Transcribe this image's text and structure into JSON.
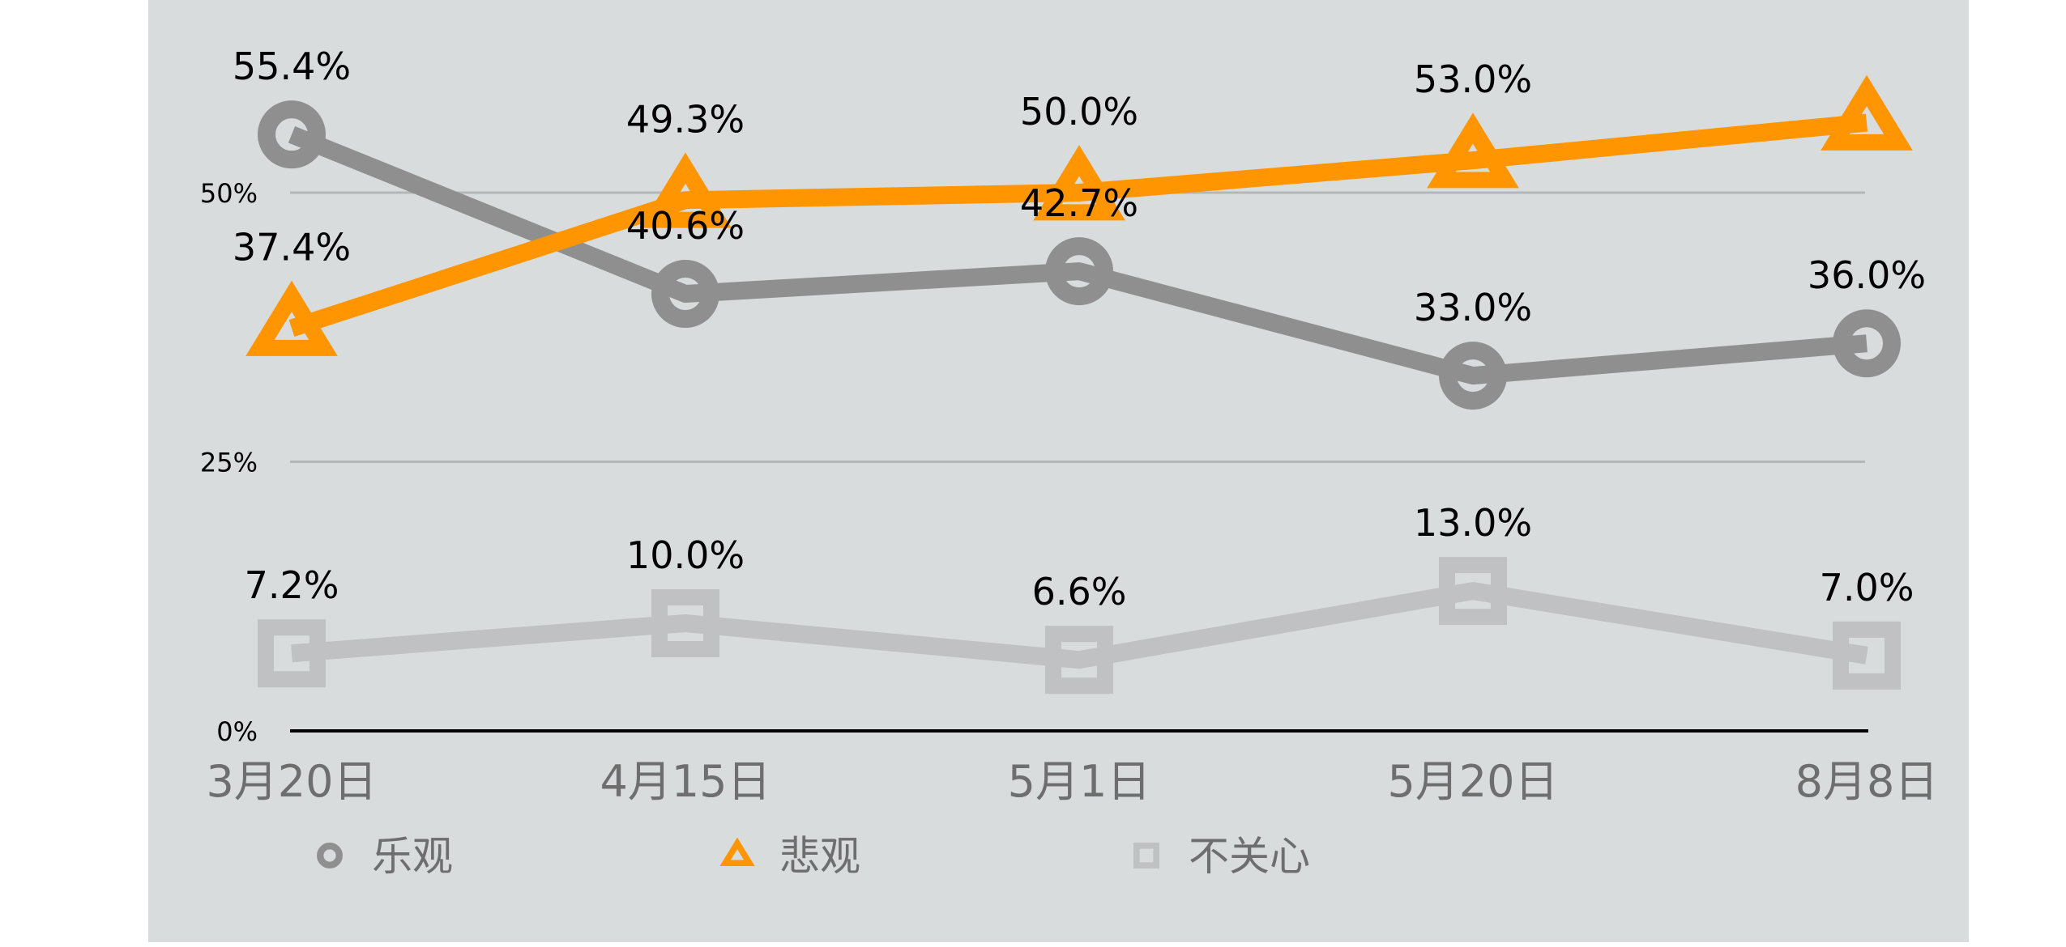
{
  "chart_data": {
    "type": "line",
    "categories": [
      "3月20日",
      "4月15日",
      "5月1日",
      "5月20日",
      "8月8日"
    ],
    "ylim": [
      0,
      60
    ],
    "yticks": [
      {
        "value": 0,
        "label": "0%"
      },
      {
        "value": 25,
        "label": "25%"
      },
      {
        "value": 50,
        "label": "50%"
      }
    ],
    "grid": true,
    "legend_position": "bottom",
    "series": [
      {
        "name": "乐观",
        "marker": "circle",
        "color": "#8f8f8f",
        "values": [
          55.4,
          40.6,
          42.7,
          33.0,
          36.0
        ],
        "labels": [
          "55.4%",
          "40.6%",
          "42.7%",
          "33.0%",
          "36.0%"
        ]
      },
      {
        "name": "悲观",
        "marker": "triangle",
        "color": "#ff9500",
        "values": [
          37.4,
          49.3,
          50.0,
          53.0,
          56.5
        ],
        "labels": [
          "37.4%",
          "49.3%",
          "50.0%",
          "53.0%",
          ""
        ]
      },
      {
        "name": "不关心",
        "marker": "square",
        "color": "#bfc1c2",
        "values": [
          7.2,
          10.0,
          6.6,
          13.0,
          7.0
        ],
        "labels": [
          "7.2%",
          "10.0%",
          "6.6%",
          "13.0%",
          "7.0%"
        ]
      }
    ]
  },
  "colors": {
    "panel": "#d9dcdd",
    "grid": "#b4b7b8",
    "axis": "#000000",
    "tick_text": "#6e6e6e",
    "data_label": "#000000"
  }
}
